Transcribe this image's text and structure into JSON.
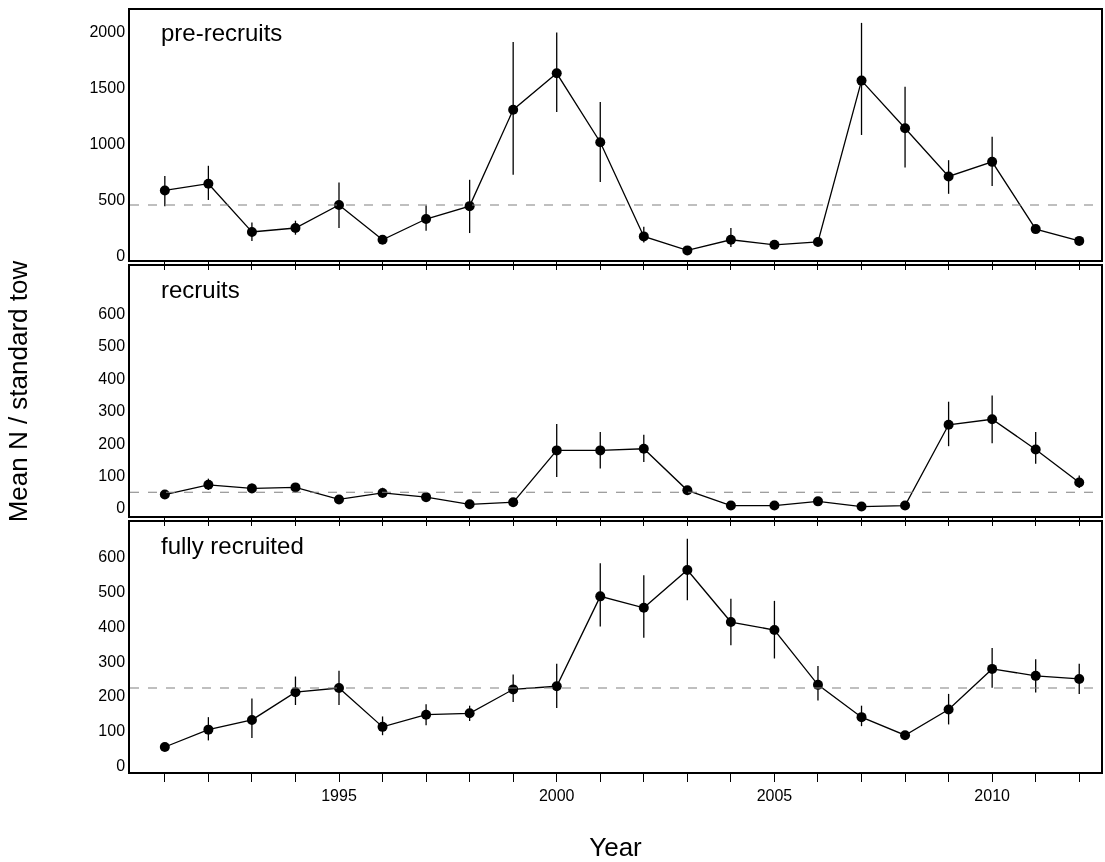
{
  "chart_data": [
    {
      "type": "line",
      "x": [
        1991,
        1992,
        1993,
        1994,
        1995,
        1996,
        1997,
        1998,
        1999,
        2000,
        2001,
        2002,
        2003,
        2004,
        2005,
        2006,
        2007,
        2008,
        2009,
        2010,
        2011,
        2012
      ],
      "series": [
        {
          "color": "#000000",
          "values": [
            580,
            640,
            210,
            245,
            450,
            140,
            325,
            440,
            1300,
            1625,
            1010,
            170,
            45,
            140,
            95,
            120,
            1560,
            1135,
            705,
            835,
            235,
            130
          ],
          "errors": [
            [
              440,
              710
            ],
            [
              495,
              800
            ],
            [
              130,
              295
            ],
            [
              185,
              310
            ],
            [
              245,
              650
            ],
            [
              110,
              180
            ],
            [
              220,
              445
            ],
            [
              200,
              675
            ],
            [
              720,
              1905
            ],
            [
              1280,
              1990
            ],
            [
              655,
              1370
            ],
            [
              115,
              255
            ],
            [
              20,
              70
            ],
            [
              75,
              245
            ],
            [
              80,
              120
            ],
            [
              100,
              140
            ],
            [
              1075,
              2075
            ],
            [
              785,
              1505
            ],
            [
              550,
              850
            ],
            [
              620,
              1060
            ],
            [
              200,
              270
            ],
            [
              110,
              150
            ]
          ]
        }
      ],
      "annotations": [
        "pre-recruits"
      ],
      "ylim": [
        -40,
        2190
      ],
      "yticks": [
        0,
        500,
        1000,
        1500,
        2000
      ],
      "xlim": [
        1990.2,
        2012.5
      ],
      "xticks": [
        {
          "value": 1991,
          "label": null
        },
        {
          "value": 1992,
          "label": null
        },
        {
          "value": 1993,
          "label": null
        },
        {
          "value": 1994,
          "label": null
        },
        {
          "value": 1995,
          "label": null
        },
        {
          "value": 1996,
          "label": null
        },
        {
          "value": 1997,
          "label": null
        },
        {
          "value": 1998,
          "label": null
        },
        {
          "value": 1999,
          "label": null
        },
        {
          "value": 2000,
          "label": null
        },
        {
          "value": 2001,
          "label": null
        },
        {
          "value": 2002,
          "label": null
        },
        {
          "value": 2003,
          "label": null
        },
        {
          "value": 2004,
          "label": null
        },
        {
          "value": 2005,
          "label": null
        },
        {
          "value": 2006,
          "label": null
        },
        {
          "value": 2007,
          "label": null
        },
        {
          "value": 2008,
          "label": null
        },
        {
          "value": 2009,
          "label": null
        },
        {
          "value": 2010,
          "label": null
        },
        {
          "value": 2011,
          "label": null
        },
        {
          "value": 2012,
          "label": null
        }
      ],
      "ref_lines": [
        {
          "axis": "y",
          "value": 450,
          "color": "#808080",
          "line_style": "dashed"
        }
      ],
      "tick_labels": "y",
      "marker": "circle",
      "line_style": "solid"
    },
    {
      "type": "line",
      "x": [
        1991,
        1992,
        1993,
        1994,
        1995,
        1996,
        1997,
        1998,
        1999,
        2000,
        2001,
        2002,
        2003,
        2004,
        2005,
        2006,
        2007,
        2008,
        2009,
        2010,
        2011,
        2012
      ],
      "series": [
        {
          "color": "#000000",
          "values": [
            41,
            71,
            60,
            63,
            26,
            46,
            33,
            11,
            17,
            177,
            177,
            182,
            54,
            7,
            7,
            20,
            4,
            7,
            256,
            273,
            180,
            78
          ],
          "errors": [
            null,
            [
              55,
              90
            ],
            [
              50,
              75
            ],
            [
              55,
              72
            ],
            null,
            [
              35,
              62
            ],
            null,
            null,
            null,
            [
              95,
              258
            ],
            [
              121,
              234
            ],
            [
              141,
              225
            ],
            null,
            null,
            null,
            null,
            null,
            null,
            [
              190,
              327
            ],
            [
              199,
              346
            ],
            [
              136,
              234
            ],
            [
              61,
              100
            ]
          ]
        }
      ],
      "annotations": [
        "recruits"
      ],
      "ylabel": "Mean N / standard tow",
      "ylim": [
        -25,
        745
      ],
      "yticks": [
        0,
        100,
        200,
        300,
        400,
        500,
        600
      ],
      "xlim": [
        1990.2,
        2012.5
      ],
      "xticks": [
        {
          "value": 1991,
          "label": null
        },
        {
          "value": 1992,
          "label": null
        },
        {
          "value": 1993,
          "label": null
        },
        {
          "value": 1994,
          "label": null
        },
        {
          "value": 1995,
          "label": null
        },
        {
          "value": 1996,
          "label": null
        },
        {
          "value": 1997,
          "label": null
        },
        {
          "value": 1998,
          "label": null
        },
        {
          "value": 1999,
          "label": null
        },
        {
          "value": 2000,
          "label": null
        },
        {
          "value": 2001,
          "label": null
        },
        {
          "value": 2002,
          "label": null
        },
        {
          "value": 2003,
          "label": null
        },
        {
          "value": 2004,
          "label": null
        },
        {
          "value": 2005,
          "label": null
        },
        {
          "value": 2006,
          "label": null
        },
        {
          "value": 2007,
          "label": null
        },
        {
          "value": 2008,
          "label": null
        },
        {
          "value": 2009,
          "label": null
        },
        {
          "value": 2010,
          "label": null
        },
        {
          "value": 2011,
          "label": null
        },
        {
          "value": 2012,
          "label": null
        }
      ],
      "ref_lines": [
        {
          "axis": "y",
          "value": 48,
          "color": "#808080",
          "line_style": "dashed"
        }
      ],
      "tick_labels": "y",
      "marker": "circle",
      "line_style": "solid"
    },
    {
      "type": "line",
      "x": [
        1991,
        1992,
        1993,
        1994,
        1995,
        1996,
        1997,
        1998,
        1999,
        2000,
        2001,
        2002,
        2003,
        2004,
        2005,
        2006,
        2007,
        2008,
        2009,
        2010,
        2011,
        2012
      ],
      "series": [
        {
          "color": "#000000",
          "values": [
            52,
            102,
            130,
            210,
            222,
            110,
            145,
            149,
            218,
            227,
            486,
            453,
            562,
            412,
            389,
            231,
            138,
            86,
            160,
            277,
            257,
            248
          ],
          "errors": [
            null,
            [
              71,
              138
            ],
            [
              78,
              192
            ],
            [
              173,
              255
            ],
            [
              173,
              272
            ],
            [
              86,
              140
            ],
            [
              115,
              175
            ],
            [
              127,
              171
            ],
            [
              182,
              261
            ],
            [
              164,
              292
            ],
            [
              399,
              581
            ],
            [
              367,
              547
            ],
            [
              475,
              652
            ],
            [
              345,
              479
            ],
            [
              307,
              473
            ],
            [
              186,
              285
            ],
            [
              112,
              171
            ],
            null,
            [
              117,
              205
            ],
            [
              223,
              337
            ],
            [
              209,
              305
            ],
            [
              205,
              292
            ]
          ]
        }
      ],
      "annotations": [
        "fully recruited"
      ],
      "xlabel": "Year",
      "ylim": [
        -20,
        700
      ],
      "yticks": [
        0,
        100,
        200,
        300,
        400,
        500,
        600
      ],
      "xlim": [
        1990.2,
        2012.5
      ],
      "xticks": [
        {
          "value": 1991,
          "label": null
        },
        {
          "value": 1992,
          "label": null
        },
        {
          "value": 1993,
          "label": null
        },
        {
          "value": 1994,
          "label": null
        },
        1995,
        {
          "value": 1996,
          "label": null
        },
        {
          "value": 1997,
          "label": null
        },
        {
          "value": 1998,
          "label": null
        },
        {
          "value": 1999,
          "label": null
        },
        2000,
        {
          "value": 2001,
          "label": null
        },
        {
          "value": 2002,
          "label": null
        },
        {
          "value": 2003,
          "label": null
        },
        {
          "value": 2004,
          "label": null
        },
        2005,
        {
          "value": 2006,
          "label": null
        },
        {
          "value": 2007,
          "label": null
        },
        {
          "value": 2008,
          "label": null
        },
        {
          "value": 2009,
          "label": null
        },
        2010,
        {
          "value": 2011,
          "label": null
        },
        {
          "value": 2012,
          "label": null
        }
      ],
      "ref_lines": [
        {
          "axis": "y",
          "value": 222,
          "color": "#808080",
          "line_style": "dashed"
        }
      ],
      "marker": "circle",
      "line_style": "solid"
    }
  ]
}
